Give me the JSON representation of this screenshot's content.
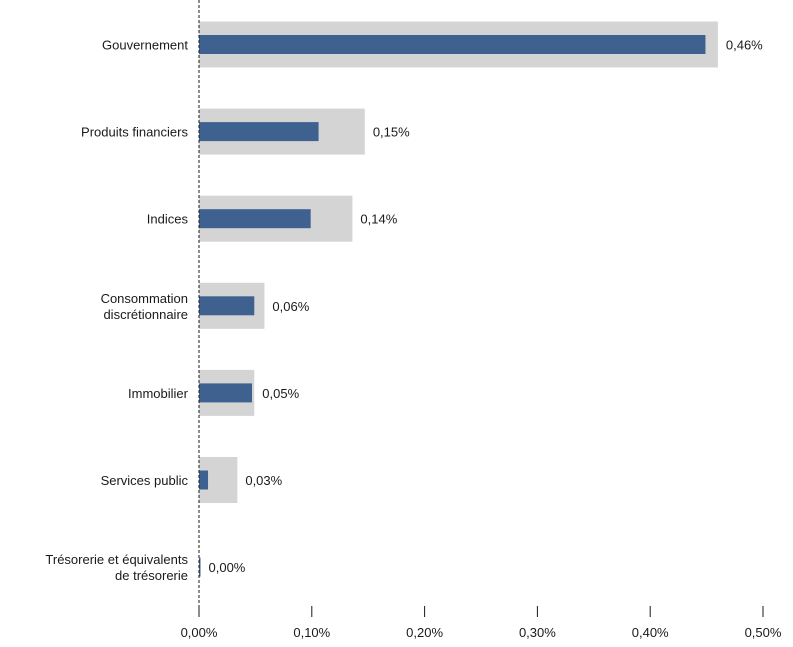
{
  "chart_data": {
    "type": "bar",
    "orientation": "horizontal",
    "categories": [
      [
        "Gouvernement"
      ],
      [
        "Produits financiers"
      ],
      [
        "Indices"
      ],
      [
        "Consommation",
        "discrétionnaire"
      ],
      [
        "Immobilier"
      ],
      [
        "Services public"
      ],
      [
        "Trésorerie et équivalents",
        "de trésorerie"
      ]
    ],
    "series": [
      {
        "values": [
          0.46,
          0.147,
          0.136,
          0.058,
          0.049,
          0.034,
          0.0
        ],
        "color": "#d4d4d4"
      },
      {
        "values": [
          0.449,
          0.106,
          0.099,
          0.049,
          0.047,
          0.008,
          0.001
        ],
        "color": "#3f618f"
      }
    ],
    "data_labels": [
      "0,46%",
      "0,15%",
      "0,14%",
      "0,06%",
      "0,05%",
      "0,03%",
      "0,00%"
    ],
    "x_ticks": [
      {
        "value": 0.0,
        "label": "0,00%"
      },
      {
        "value": 0.1,
        "label": "0,10%"
      },
      {
        "value": 0.2,
        "label": "0,20%"
      },
      {
        "value": 0.3,
        "label": "0,30%"
      },
      {
        "value": 0.4,
        "label": "0,40%"
      },
      {
        "value": 0.5,
        "label": "0,50%"
      }
    ],
    "xlim": [
      0,
      0.5
    ],
    "grid": false,
    "zero_line_style": "dashed"
  }
}
